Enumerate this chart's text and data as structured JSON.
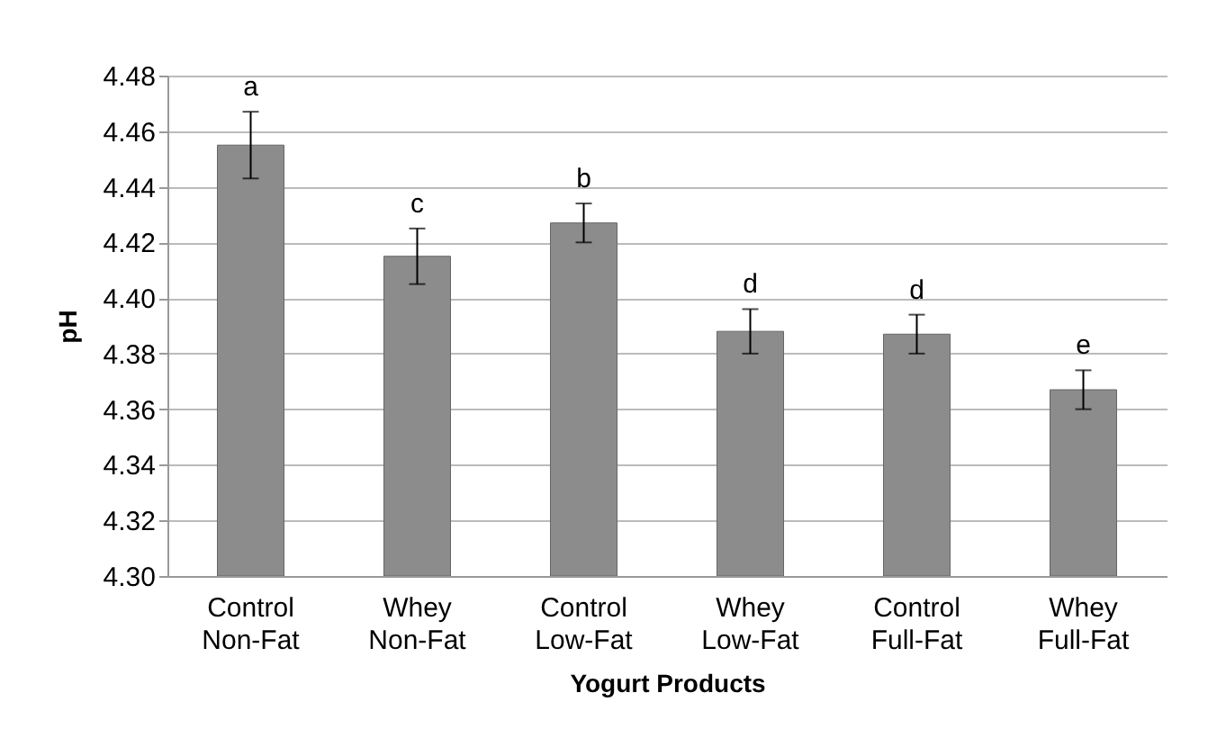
{
  "chart_data": {
    "type": "bar",
    "xlabel": "Yogurt Products",
    "ylabel": "pH",
    "categories": [
      "Control Non-Fat",
      "Whey Non-Fat",
      "Control Low-Fat",
      "Whey Low-Fat",
      "Control Full-Fat",
      "Whey Full-Fat"
    ],
    "values": [
      4.455,
      4.415,
      4.427,
      4.388,
      4.387,
      4.367
    ],
    "errors": [
      0.012,
      0.01,
      0.007,
      0.008,
      0.007,
      0.007
    ],
    "color": "#8c8c8c",
    "ylim": [
      4.3,
      4.48
    ],
    "yticks": [
      {
        "value": 4.3,
        "label": "4.30"
      },
      {
        "value": 4.32,
        "label": "4.32"
      },
      {
        "value": 4.34,
        "label": "4.34"
      },
      {
        "value": 4.36,
        "label": "4.36"
      },
      {
        "value": 4.38,
        "label": "4.38"
      },
      {
        "value": 4.4,
        "label": "4.40"
      },
      {
        "value": 4.42,
        "label": "4.42"
      },
      {
        "value": 4.44,
        "label": "4.44"
      },
      {
        "value": 4.46,
        "label": "4.46"
      },
      {
        "value": 4.48,
        "label": "4.48"
      }
    ],
    "grid": true,
    "annotations": [
      {
        "text": "a",
        "x": "Control Non-Fat",
        "y": 4.467
      },
      {
        "text": "c",
        "x": "Whey Non-Fat",
        "y": 4.425
      },
      {
        "text": "b",
        "x": "Control Low-Fat",
        "y": 4.434
      },
      {
        "text": "d",
        "x": "Whey Low-Fat",
        "y": 4.396
      },
      {
        "text": "d",
        "x": "Control Full-Fat",
        "y": 4.394
      },
      {
        "text": "e",
        "x": "Whey Full-Fat",
        "y": 4.374
      }
    ]
  }
}
